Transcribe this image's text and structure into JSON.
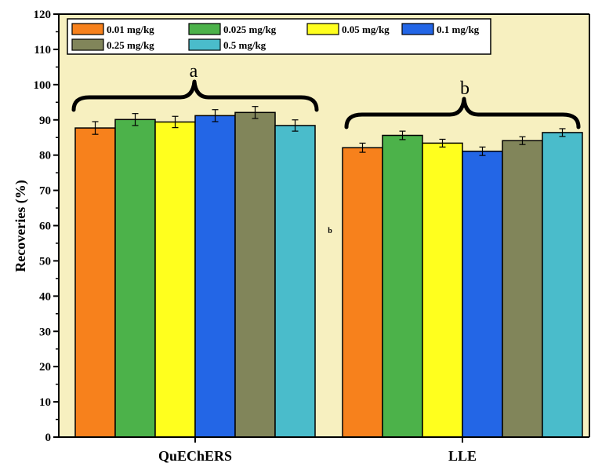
{
  "chart_data": {
    "type": "bar",
    "categories": [
      "QuEChERS",
      "LLE"
    ],
    "series": [
      {
        "name": "0.01 mg/kg",
        "values": [
          87.7,
          82.1
        ],
        "errors": [
          1.8,
          1.3
        ],
        "color": "#F7811C"
      },
      {
        "name": "0.025 mg/kg",
        "values": [
          90.1,
          85.6
        ],
        "errors": [
          1.7,
          1.2
        ],
        "color": "#4CB24A"
      },
      {
        "name": "0.05 mg/kg",
        "values": [
          89.4,
          83.4
        ],
        "errors": [
          1.6,
          1.1
        ],
        "color": "#FFFF1E"
      },
      {
        "name": "0.1 mg/kg",
        "values": [
          91.2,
          81.1
        ],
        "errors": [
          1.7,
          1.2
        ],
        "color": "#2366E6"
      },
      {
        "name": "0.25 mg/kg",
        "values": [
          92.1,
          84.1
        ],
        "errors": [
          1.7,
          1.1
        ],
        "color": "#81855A"
      },
      {
        "name": "0.5 mg/kg",
        "values": [
          88.4,
          86.4
        ],
        "errors": [
          1.6,
          1.1
        ],
        "color": "#4ABCCB"
      }
    ],
    "title": "",
    "xlabel": "",
    "ylabel": "Recoveries (%)",
    "ylim": [
      0,
      120
    ],
    "yticks": [
      "0",
      "10",
      "20",
      "30",
      "40",
      "50",
      "60",
      "70",
      "80",
      "90",
      "100",
      "110",
      "120"
    ],
    "group_annotations": [
      "a",
      "b"
    ],
    "stray_text": "b",
    "legend_position": "top-left",
    "background_color": "#F7F0C0",
    "grid": false
  }
}
